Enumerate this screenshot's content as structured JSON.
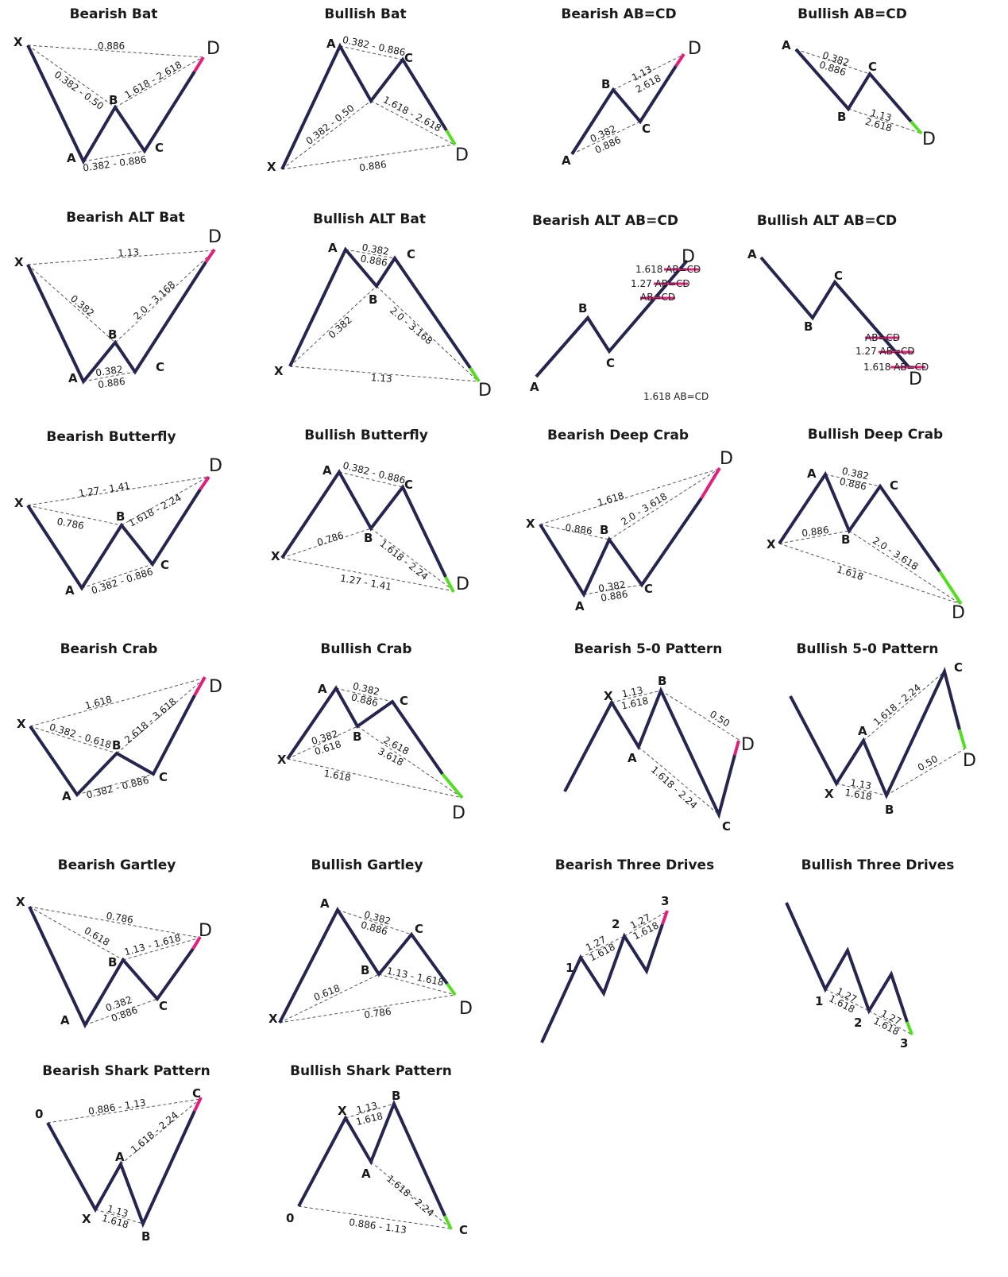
{
  "colors": {
    "leg": "#25254f",
    "bearish_end": "#e0207a",
    "bullish_end": "#55dd22",
    "dash": "#555555"
  },
  "patterns": [
    {
      "title": "Bearish Bat",
      "bias": "bearish",
      "points": [
        {
          "label": "X"
        },
        {
          "label": "A"
        },
        {
          "label": "B"
        },
        {
          "label": "C"
        },
        {
          "label": "D"
        }
      ],
      "ratios": [
        {
          "text": "0.886"
        },
        {
          "text": "0.382 - 0.50"
        },
        {
          "text": "1.618 - 2.618"
        },
        {
          "text": "0.382 - 0.886"
        }
      ]
    },
    {
      "title": "Bullish Bat",
      "bias": "bullish",
      "points": [
        {
          "label": "X"
        },
        {
          "label": "A"
        },
        {
          "label": "B"
        },
        {
          "label": "C"
        },
        {
          "label": "D"
        }
      ],
      "ratios": [
        {
          "text": "0.382 - 0.886"
        },
        {
          "text": "0.382 - 0.50"
        },
        {
          "text": "1.618 - 2.618"
        },
        {
          "text": "0.886"
        }
      ]
    },
    {
      "title": "Bearish AB=CD",
      "bias": "bearish",
      "points": [
        {
          "label": "A"
        },
        {
          "label": "B"
        },
        {
          "label": "C"
        },
        {
          "label": "D"
        }
      ],
      "ratios": [
        {
          "text": "1.13"
        },
        {
          "text": "2.618"
        },
        {
          "text": "0.382"
        },
        {
          "text": "0.886"
        }
      ]
    },
    {
      "title": "Bullish AB=CD",
      "bias": "bullish",
      "points": [
        {
          "label": "A"
        },
        {
          "label": "B"
        },
        {
          "label": "C"
        },
        {
          "label": "D"
        }
      ],
      "ratios": [
        {
          "text": "0.382"
        },
        {
          "text": "0.886"
        },
        {
          "text": "1.13"
        },
        {
          "text": "2.618"
        }
      ]
    },
    {
      "title": "Bearish ALT Bat",
      "bias": "bearish",
      "points": [
        {
          "label": "X"
        },
        {
          "label": "A"
        },
        {
          "label": "B"
        },
        {
          "label": "C"
        },
        {
          "label": "D"
        }
      ],
      "ratios": [
        {
          "text": "1.13"
        },
        {
          "text": "0.382"
        },
        {
          "text": "2.0 - 3.168"
        },
        {
          "text": "0.382"
        },
        {
          "text": "0.886"
        }
      ]
    },
    {
      "title": "Bullish ALT Bat",
      "bias": "bullish",
      "points": [
        {
          "label": "X"
        },
        {
          "label": "A"
        },
        {
          "label": "B"
        },
        {
          "label": "C"
        },
        {
          "label": "D"
        }
      ],
      "ratios": [
        {
          "text": "0.382"
        },
        {
          "text": "0.886"
        },
        {
          "text": "0.382"
        },
        {
          "text": "2.0 - 3.168"
        },
        {
          "text": "1.13"
        }
      ]
    },
    {
      "title": "Bearish ALT AB=CD",
      "bias": "bearish",
      "points": [
        {
          "label": "A"
        },
        {
          "label": "B"
        },
        {
          "label": "C"
        },
        {
          "label": "D"
        }
      ],
      "levels": [
        {
          "text": "1.618 AB=CD"
        },
        {
          "text": "1.27 AB=CD"
        },
        {
          "text": "AB=CD"
        }
      ],
      "note": "1.618 AB=CD"
    },
    {
      "title": "Bullish ALT AB=CD",
      "bias": "bullish",
      "points": [
        {
          "label": "A"
        },
        {
          "label": "B"
        },
        {
          "label": "C"
        },
        {
          "label": "D"
        }
      ],
      "levels": [
        {
          "text": "AB=CD"
        },
        {
          "text": "1.27 AB=CD"
        },
        {
          "text": "1.618 AB=CD"
        }
      ]
    },
    {
      "title": "Bearish Butterfly",
      "bias": "bearish",
      "points": [
        {
          "label": "X"
        },
        {
          "label": "A"
        },
        {
          "label": "B"
        },
        {
          "label": "C"
        },
        {
          "label": "D"
        }
      ],
      "ratios": [
        {
          "text": "1.27 - 1.41"
        },
        {
          "text": "0.786"
        },
        {
          "text": "1.618 - 2.24"
        },
        {
          "text": "0.382 - 0.886"
        }
      ]
    },
    {
      "title": "Bullish Butterfly",
      "bias": "bullish",
      "points": [
        {
          "label": "X"
        },
        {
          "label": "A"
        },
        {
          "label": "B"
        },
        {
          "label": "C"
        },
        {
          "label": "D"
        }
      ],
      "ratios": [
        {
          "text": "0.382 - 0.886"
        },
        {
          "text": "0.786"
        },
        {
          "text": "1.618 - 2.24"
        },
        {
          "text": "1.27 - 1.41"
        }
      ]
    },
    {
      "title": "Bearish Deep Crab",
      "bias": "bearish",
      "points": [
        {
          "label": "X"
        },
        {
          "label": "A"
        },
        {
          "label": "B"
        },
        {
          "label": "C"
        },
        {
          "label": "D"
        }
      ],
      "ratios": [
        {
          "text": "1.618"
        },
        {
          "text": "0.886"
        },
        {
          "text": "2.0 - 3.618"
        },
        {
          "text": "0.382"
        },
        {
          "text": "0.886"
        }
      ]
    },
    {
      "title": "Bullish Deep Crab",
      "bias": "bullish",
      "points": [
        {
          "label": "X"
        },
        {
          "label": "A"
        },
        {
          "label": "B"
        },
        {
          "label": "C"
        },
        {
          "label": "D"
        }
      ],
      "ratios": [
        {
          "text": "0.382"
        },
        {
          "text": "0.886"
        },
        {
          "text": "0.886"
        },
        {
          "text": "2.0 - 3.618"
        },
        {
          "text": "1.618"
        }
      ]
    },
    {
      "title": "Bearish Crab",
      "bias": "bearish",
      "points": [
        {
          "label": "X"
        },
        {
          "label": "A"
        },
        {
          "label": "B"
        },
        {
          "label": "C"
        },
        {
          "label": "D"
        }
      ],
      "ratios": [
        {
          "text": "1.618"
        },
        {
          "text": "0.382 - 0.618"
        },
        {
          "text": "2.618 - 3.618"
        },
        {
          "text": "0.382 - 0.886"
        }
      ]
    },
    {
      "title": "Bullish Crab",
      "bias": "bullish",
      "points": [
        {
          "label": "X"
        },
        {
          "label": "A"
        },
        {
          "label": "B"
        },
        {
          "label": "C"
        },
        {
          "label": "D"
        }
      ],
      "ratios": [
        {
          "text": "0.382"
        },
        {
          "text": "0.886"
        },
        {
          "text": "0.382"
        },
        {
          "text": "0.618"
        },
        {
          "text": "2.618"
        },
        {
          "text": "3.618"
        },
        {
          "text": "1.618"
        }
      ]
    },
    {
      "title": "Bearish 5-0 Pattern",
      "bias": "bearish",
      "points": [
        {
          "label": "X"
        },
        {
          "label": "A"
        },
        {
          "label": "B"
        },
        {
          "label": "C"
        },
        {
          "label": "D"
        }
      ],
      "ratios": [
        {
          "text": "1.13"
        },
        {
          "text": "1.618"
        },
        {
          "text": "0.50"
        },
        {
          "text": "1.618 - 2.24"
        }
      ]
    },
    {
      "title": "Bullish 5-0 Pattern",
      "bias": "bullish",
      "points": [
        {
          "label": "X"
        },
        {
          "label": "A"
        },
        {
          "label": "B"
        },
        {
          "label": "C"
        },
        {
          "label": "D"
        }
      ],
      "ratios": [
        {
          "text": "1.618 - 2.24"
        },
        {
          "text": "1.13"
        },
        {
          "text": "1.618"
        },
        {
          "text": "0.50"
        }
      ]
    },
    {
      "title": "Bearish Gartley",
      "bias": "bearish",
      "points": [
        {
          "label": "X"
        },
        {
          "label": "A"
        },
        {
          "label": "B"
        },
        {
          "label": "C"
        },
        {
          "label": "D"
        }
      ],
      "ratios": [
        {
          "text": "0.786"
        },
        {
          "text": "0.618"
        },
        {
          "text": "1.13 - 1.618"
        },
        {
          "text": "0.382"
        },
        {
          "text": "0.886"
        }
      ]
    },
    {
      "title": "Bullish Gartley",
      "bias": "bullish",
      "points": [
        {
          "label": "X"
        },
        {
          "label": "A"
        },
        {
          "label": "B"
        },
        {
          "label": "C"
        },
        {
          "label": "D"
        }
      ],
      "ratios": [
        {
          "text": "0.382"
        },
        {
          "text": "0.886"
        },
        {
          "text": "0.618"
        },
        {
          "text": "1.13 - 1.618"
        },
        {
          "text": "0.786"
        }
      ]
    },
    {
      "title": "Bearish Three Drives",
      "bias": "bearish",
      "points": [
        {
          "label": "1"
        },
        {
          "label": "2"
        },
        {
          "label": "3"
        }
      ],
      "ratios": [
        {
          "text": "1.27"
        },
        {
          "text": "1.618"
        },
        {
          "text": "1.27"
        },
        {
          "text": "1.618"
        }
      ]
    },
    {
      "title": "Bullish Three Drives",
      "bias": "bullish",
      "points": [
        {
          "label": "1"
        },
        {
          "label": "2"
        },
        {
          "label": "3"
        }
      ],
      "ratios": [
        {
          "text": "1.27"
        },
        {
          "text": "1.618"
        },
        {
          "text": "1.27"
        },
        {
          "text": "1.618"
        }
      ]
    },
    {
      "title": "Bearish Shark Pattern",
      "bias": "bearish",
      "points": [
        {
          "label": "0"
        },
        {
          "label": "X"
        },
        {
          "label": "A"
        },
        {
          "label": "B"
        },
        {
          "label": "C"
        }
      ],
      "ratios": [
        {
          "text": "0.886 - 1.13"
        },
        {
          "text": "1.618 - 2.24"
        },
        {
          "text": "1.13"
        },
        {
          "text": "1.618"
        }
      ]
    },
    {
      "title": "Bullish Shark Pattern",
      "bias": "bullish",
      "points": [
        {
          "label": "0"
        },
        {
          "label": "X"
        },
        {
          "label": "A"
        },
        {
          "label": "B"
        },
        {
          "label": "C"
        }
      ],
      "ratios": [
        {
          "text": "1.13"
        },
        {
          "text": "1.618"
        },
        {
          "text": "1.618 - 2.24"
        },
        {
          "text": "0.886 - 1.13"
        }
      ]
    }
  ]
}
